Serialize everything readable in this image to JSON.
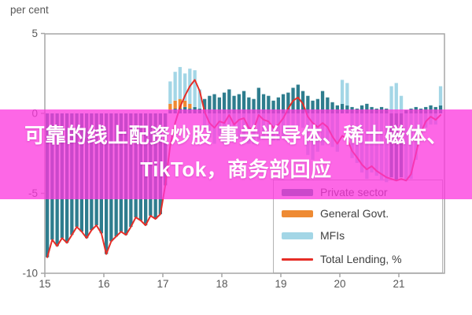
{
  "overlay": {
    "text": "可靠的线上配资炒股 事关半导体、稀土磁体、TikTok，商务部回应",
    "background_color": "#fd37de",
    "background_opacity": 0.76,
    "text_color": "#ffffff"
  },
  "chart_data": {
    "type": "bar",
    "subtype": "monthly stacked bars with total line overlay",
    "title": "",
    "xlabel": "",
    "ylabel": "per cent",
    "unit_label": "per cent",
    "ylim": [
      -10,
      5
    ],
    "grid": false,
    "legend_position": "lower right",
    "y_tick_values": [
      5,
      0,
      -5,
      -10
    ],
    "y_tick_labels": [
      "5",
      "0",
      "-5",
      "-10"
    ],
    "x_tick_labels": [
      "15",
      "16",
      "17",
      "18",
      "19",
      "20",
      "21"
    ],
    "x_range_months": "2015-01 to 2021-09",
    "frame_color": "#a6a6a6",
    "tick_label_color": "#575757",
    "series": [
      {
        "name": "Private sector",
        "render": "bar",
        "color": "#2e7d8e",
        "values": [
          -9.0,
          -7.9,
          -8.3,
          -7.8,
          -8.1,
          -7.6,
          -7.1,
          -7.4,
          -7.8,
          -7.3,
          -7.0,
          -7.5,
          -8.8,
          -8.0,
          -7.7,
          -7.4,
          -7.6,
          -7.1,
          -6.5,
          -6.7,
          -7.0,
          -6.4,
          -6.6,
          -6.3,
          -4.5,
          0.2,
          0.3,
          0.3,
          0.4,
          0.3,
          0.4,
          0.3,
          0.9,
          1.1,
          1.2,
          1.0,
          1.3,
          1.5,
          1.1,
          1.2,
          1.4,
          1.0,
          0.9,
          1.6,
          1.2,
          1.1,
          0.8,
          1.0,
          1.2,
          1.3,
          1.6,
          1.8,
          1.4,
          1.1,
          0.8,
          0.9,
          1.4,
          1.0,
          0.7,
          0.5,
          0.6,
          0.5,
          0.4,
          0.3,
          0.5,
          0.6,
          0.4,
          0.3,
          0.4,
          0.3,
          -4.0,
          -4.2,
          -4.0,
          0.2,
          0.3,
          0.4,
          0.3,
          0.4,
          0.5,
          0.4,
          0.5
        ]
      },
      {
        "name": "General Govt.",
        "render": "bar",
        "color": "#ee8a33",
        "values": [
          0,
          0,
          0,
          0,
          0,
          0,
          0,
          0,
          0,
          0,
          0,
          0,
          0,
          0,
          0,
          0,
          0,
          0,
          0,
          0,
          0,
          0,
          0,
          0,
          0,
          0.4,
          0.5,
          0.6,
          0.4,
          0.3,
          0,
          0,
          0,
          0,
          0,
          0,
          0,
          0,
          0,
          0,
          0,
          0,
          0,
          0,
          0,
          0,
          0,
          0,
          0,
          0,
          0,
          0,
          0,
          0,
          0,
          0,
          0,
          0,
          0,
          0,
          0,
          0,
          0,
          0,
          0,
          0,
          0,
          0,
          0,
          0,
          0,
          0,
          0,
          0,
          0,
          0,
          0,
          0,
          0,
          0,
          0
        ]
      },
      {
        "name": "MFIs",
        "render": "bar",
        "color": "#a3d6e6",
        "values": [
          0,
          0,
          0,
          0,
          0,
          0,
          0,
          0,
          0,
          0,
          0,
          0,
          0,
          0,
          0,
          0,
          0,
          0,
          0,
          0,
          0,
          0,
          0,
          0,
          0,
          1.4,
          1.8,
          2.0,
          1.7,
          2.2,
          2.3,
          1.2,
          -0.9,
          -1.5,
          -1.9,
          -1.4,
          -1.9,
          -1.6,
          -1.8,
          -1.6,
          -1.7,
          -1.9,
          -1.9,
          -1.7,
          -1.6,
          -1.6,
          -1.7,
          -1.7,
          -1.5,
          -1.0,
          -0.8,
          -0.8,
          -0.9,
          -2.6,
          -2.9,
          -2.4,
          -2.0,
          -1.8,
          -2.1,
          -2.4,
          1.5,
          1.4,
          -2.8,
          -3.1,
          -3.7,
          -4.1,
          -3.7,
          -3.9,
          -4.2,
          -4.3,
          1.7,
          1.9,
          1.1,
          -4.2,
          -4.1,
          -2.9,
          -1.5,
          -0.9,
          -0.7,
          -0.7,
          1.2
        ]
      },
      {
        "name": "Total Lending, %",
        "render": "line",
        "color": "#e62e27",
        "values": [
          -9.0,
          -7.9,
          -8.3,
          -7.8,
          -8.1,
          -7.6,
          -7.1,
          -7.4,
          -7.8,
          -7.3,
          -7.0,
          -7.5,
          -8.8,
          -8.0,
          -7.7,
          -7.4,
          -7.6,
          -7.1,
          -6.5,
          -6.7,
          -7.0,
          -6.4,
          -6.6,
          -6.3,
          -4.5,
          -2.0,
          -0.6,
          0.4,
          1.1,
          1.7,
          2.1,
          1.4,
          0.1,
          -0.6,
          -0.9,
          -0.5,
          -0.6,
          -0.1,
          -0.7,
          -0.4,
          -0.3,
          -0.9,
          -1.0,
          -0.1,
          -0.4,
          -0.5,
          -0.9,
          -0.7,
          -0.3,
          0.3,
          0.8,
          1.0,
          0.6,
          -0.2,
          -0.6,
          -0.85,
          -0.6,
          -0.85,
          -1.45,
          -1.9,
          -1.4,
          -1.6,
          -2.35,
          -2.75,
          -3.2,
          -3.5,
          -3.3,
          -3.6,
          -3.8,
          -4.0,
          -4.1,
          -4.2,
          -4.1,
          -4.2,
          -3.8,
          -2.5,
          -1.2,
          -0.5,
          -0.2,
          -0.4,
          -0.1
        ]
      }
    ],
    "legend": [
      {
        "label": "Private sector"
      },
      {
        "label": "General Govt."
      },
      {
        "label": "MFIs"
      },
      {
        "label": "Total Lending, %"
      }
    ]
  }
}
